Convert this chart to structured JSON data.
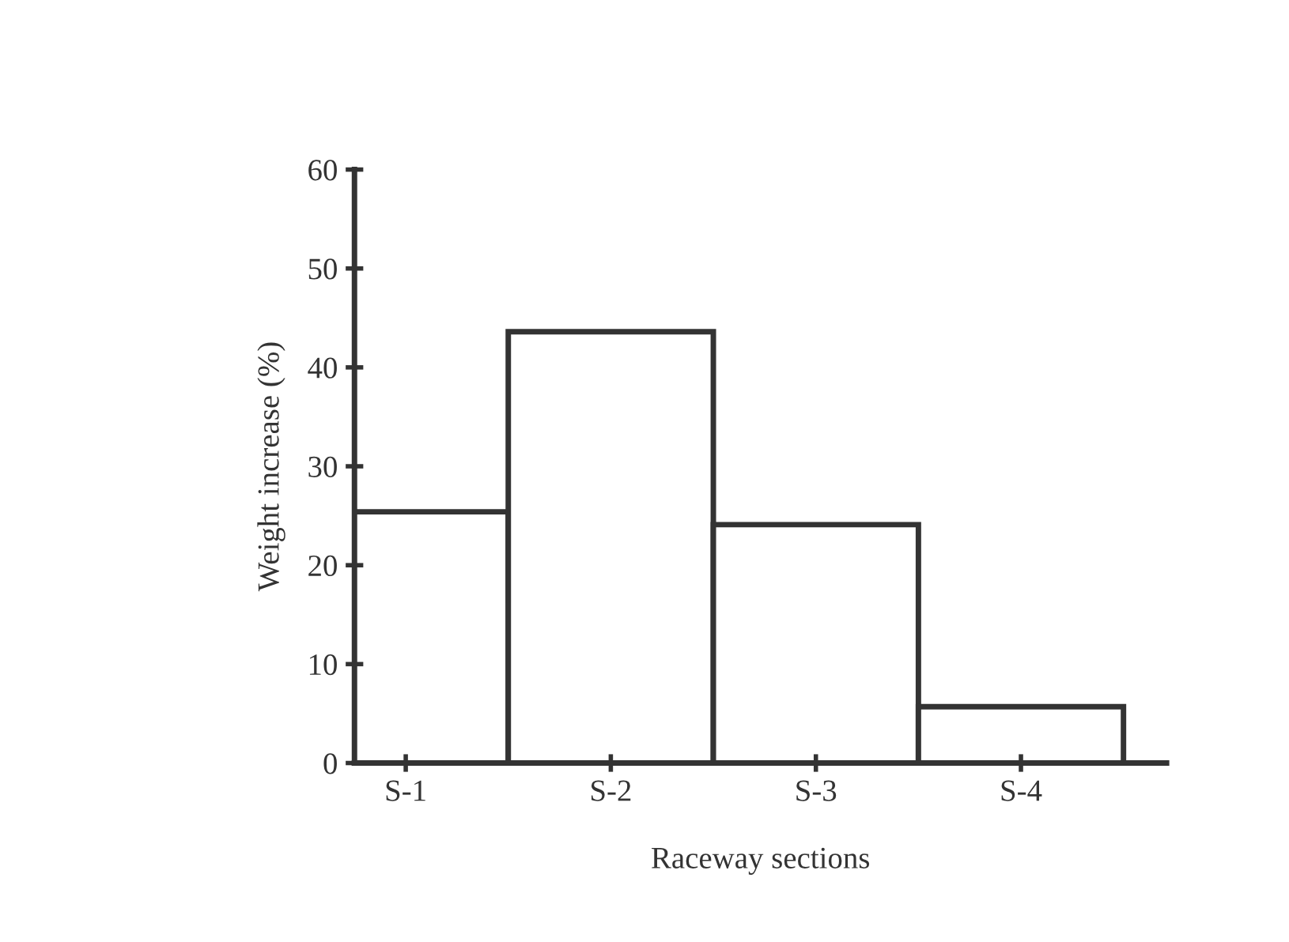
{
  "chart_data": {
    "type": "bar",
    "xlabel": "Raceway sections",
    "ylabel": "Weight increase (%)",
    "categories": [
      "S-1",
      "S-2",
      "S-3",
      "S-4"
    ],
    "values": [
      25.4,
      43.6,
      24.1,
      5.7
    ],
    "color": "#ffffff",
    "ylim": [
      0,
      60
    ],
    "yticks": [
      0,
      10,
      20,
      30,
      40,
      50,
      60
    ],
    "grid": false
  }
}
